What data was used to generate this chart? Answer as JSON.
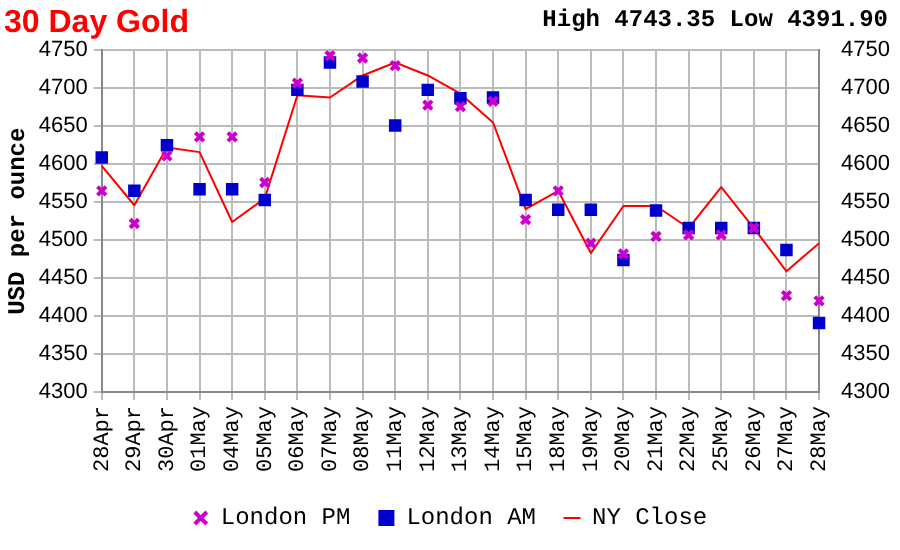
{
  "chart_data": {
    "type": "line",
    "title": "30 Day Gold",
    "ylabel": "USD per ounce",
    "annotations": [
      "High 4743.35 Low 4391.90"
    ],
    "categories": [
      "28Apr",
      "29Apr",
      "30Apr",
      "01May",
      "04May",
      "05May",
      "06May",
      "07May",
      "08May",
      "11May",
      "12May",
      "13May",
      "14May",
      "15May",
      "18May",
      "19May",
      "20May",
      "21May",
      "22May",
      "25May",
      "26May",
      "27May",
      "28May"
    ],
    "series": [
      {
        "name": "NY Close",
        "color": "#ff0000",
        "type": "line",
        "marker": "none",
        "values": [
          4598,
          4546,
          4622,
          4616,
          4524,
          4555,
          4691,
          4688,
          4717,
          4734,
          4717,
          4693,
          4655,
          4541,
          4565,
          4483,
          4545,
          4545,
          4516,
          4570,
          4516,
          4459,
          4496
        ]
      },
      {
        "name": "London AM",
        "color": "#0000cc",
        "type": "scatter",
        "marker": "square",
        "values": [
          4609,
          4565,
          4625,
          4567,
          4567,
          4553,
          4698,
          4734,
          4709,
          4651,
          4698,
          4687,
          4688,
          4553,
          4540,
          4540,
          4474,
          4539,
          4516,
          4516,
          4516,
          4487,
          4391
        ]
      },
      {
        "name": "London PM",
        "color": "#cc00cc",
        "type": "scatter",
        "marker": "cross",
        "values": [
          4565,
          4522,
          4611,
          4636,
          4636,
          4576,
          4707,
          4743,
          4740,
          4730,
          4678,
          4676,
          4683,
          4527,
          4565,
          4496,
          4482,
          4505,
          4507,
          4507,
          4516,
          4427,
          4420
        ]
      }
    ],
    "ylim": [
      4300,
      4750
    ],
    "yticks": [
      4300,
      4350,
      4400,
      4450,
      4500,
      4550,
      4600,
      4650,
      4700,
      4750
    ],
    "y2lim": [
      4300,
      4750
    ],
    "y2ticks": [
      4300,
      4350,
      4400,
      4450,
      4500,
      4550,
      4600,
      4650,
      4700,
      4750
    ],
    "grid": true,
    "legend": "bottom",
    "line_style": "solid"
  }
}
